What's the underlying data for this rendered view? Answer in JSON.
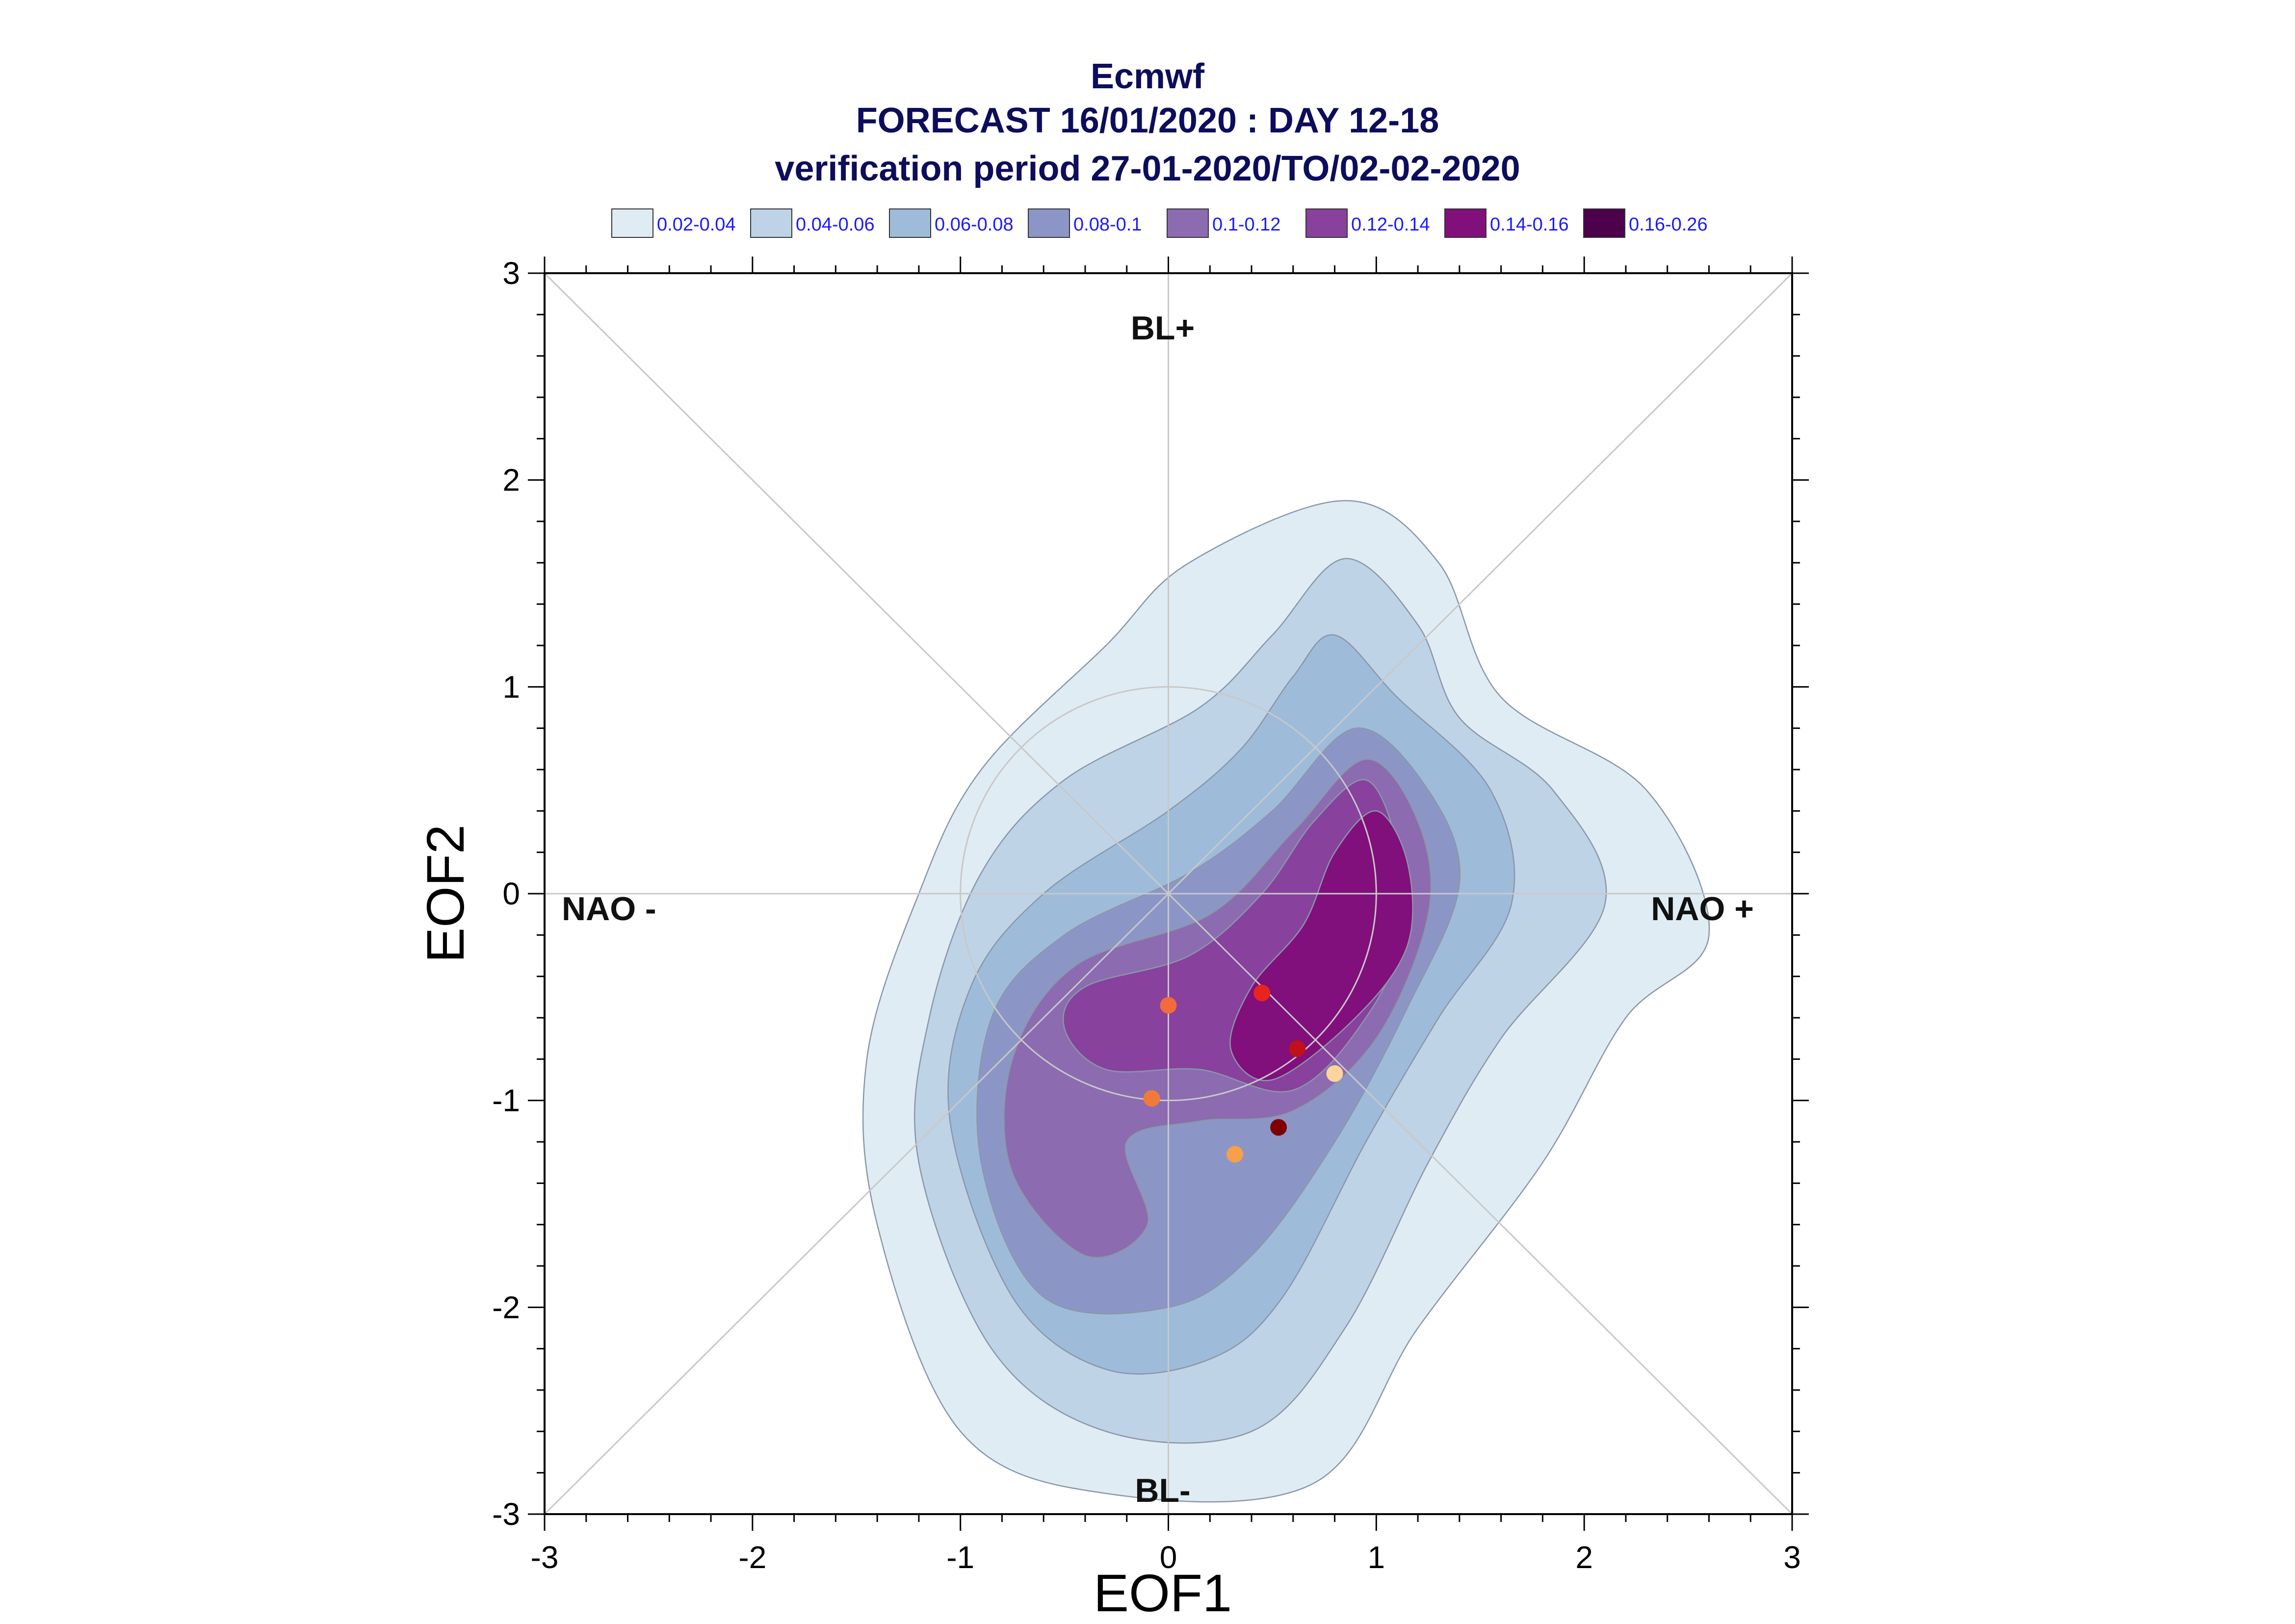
{
  "chart_data": {
    "type": "contour",
    "title_lines": [
      "Ecmwf",
      "FORECAST 16/01/2020 : DAY 12-18",
      "verification period 27-01-2020/TO/02-02-2020"
    ],
    "xlabel": "EOF1",
    "ylabel": "EOF2",
    "xlim": [
      -3,
      3
    ],
    "ylim": [
      -3,
      3
    ],
    "xticks": [
      -3,
      -2,
      -1,
      0,
      1,
      2,
      3
    ],
    "yticks": [
      -3,
      -2,
      -1,
      0,
      1,
      2,
      3
    ],
    "tick_labels": [
      "-3",
      "-2",
      "-1",
      "0",
      "1",
      "2",
      "3"
    ],
    "legend": [
      {
        "label": "0.02-0.04",
        "color": "#e0ecf4"
      },
      {
        "label": "0.04-0.06",
        "color": "#bfd3e6"
      },
      {
        "label": "0.06-0.08",
        "color": "#9ebcda"
      },
      {
        "label": "0.08-0.1",
        "color": "#8c96c6"
      },
      {
        "label": "0.1-0.12",
        "color": "#8c6bb1"
      },
      {
        "label": "0.12-0.14",
        "color": "#88419d"
      },
      {
        "label": "0.14-0.16",
        "color": "#810f7c"
      },
      {
        "label": "0.16-0.26",
        "color": "#4d004b"
      }
    ],
    "region_labels": {
      "top": "BL+",
      "bottom": "BL-",
      "left": "NAO -",
      "right": "NAO +"
    },
    "reference_circle_radius": 1,
    "contours": [
      {
        "level": "0.02-0.04",
        "color": "#e0ecf4",
        "points": [
          [
            0.85,
            1.9
          ],
          [
            1.3,
            1.6
          ],
          [
            1.6,
            0.95
          ],
          [
            2.3,
            0.5
          ],
          [
            2.6,
            -0.2
          ],
          [
            2.2,
            -0.6
          ],
          [
            1.8,
            -1.3
          ],
          [
            1.2,
            -2.1
          ],
          [
            0.7,
            -2.85
          ],
          [
            -0.3,
            -2.9
          ],
          [
            -1.0,
            -2.6
          ],
          [
            -1.4,
            -1.6
          ],
          [
            -1.45,
            -0.8
          ],
          [
            -1.2,
            0.0
          ],
          [
            -0.9,
            0.6
          ],
          [
            -0.3,
            1.2
          ],
          [
            0.1,
            1.6
          ]
        ]
      },
      {
        "level": "0.04-0.06",
        "color": "#bfd3e6",
        "points": [
          [
            0.85,
            1.62
          ],
          [
            1.2,
            1.3
          ],
          [
            1.4,
            0.85
          ],
          [
            1.85,
            0.5
          ],
          [
            2.1,
            -0.05
          ],
          [
            1.6,
            -0.7
          ],
          [
            1.25,
            -1.3
          ],
          [
            0.85,
            -2.1
          ],
          [
            0.4,
            -2.6
          ],
          [
            -0.3,
            -2.6
          ],
          [
            -0.85,
            -2.2
          ],
          [
            -1.2,
            -1.3
          ],
          [
            -1.15,
            -0.6
          ],
          [
            -0.9,
            0.1
          ],
          [
            -0.5,
            0.55
          ],
          [
            0.15,
            0.9
          ],
          [
            0.5,
            1.25
          ]
        ]
      },
      {
        "level": "0.06-0.08",
        "color": "#9ebcda",
        "points": [
          [
            0.8,
            1.25
          ],
          [
            1.1,
            0.95
          ],
          [
            1.55,
            0.5
          ],
          [
            1.65,
            -0.05
          ],
          [
            1.3,
            -0.6
          ],
          [
            0.95,
            -1.2
          ],
          [
            0.55,
            -1.95
          ],
          [
            0.2,
            -2.25
          ],
          [
            -0.3,
            -2.3
          ],
          [
            -0.75,
            -1.95
          ],
          [
            -1.05,
            -1.1
          ],
          [
            -0.95,
            -0.45
          ],
          [
            -0.6,
            0.0
          ],
          [
            0.0,
            0.4
          ],
          [
            0.35,
            0.7
          ],
          [
            0.6,
            1.05
          ]
        ]
      },
      {
        "level": "0.08-0.1",
        "color": "#8c96c6",
        "points": [
          [
            0.9,
            0.8
          ],
          [
            1.25,
            0.5
          ],
          [
            1.4,
            0.05
          ],
          [
            1.15,
            -0.55
          ],
          [
            0.8,
            -1.2
          ],
          [
            0.4,
            -1.75
          ],
          [
            0.0,
            -2.0
          ],
          [
            -0.6,
            -1.95
          ],
          [
            -0.9,
            -1.3
          ],
          [
            -0.85,
            -0.6
          ],
          [
            -0.5,
            -0.2
          ],
          [
            0.1,
            0.1
          ],
          [
            0.5,
            0.4
          ]
        ]
      },
      {
        "level": "0.1-0.12",
        "color": "#8c6bb1",
        "points": [
          [
            0.95,
            0.65
          ],
          [
            1.2,
            0.35
          ],
          [
            1.25,
            -0.1
          ],
          [
            1.0,
            -0.7
          ],
          [
            0.6,
            -1.05
          ],
          [
            0.15,
            -1.1
          ],
          [
            -0.2,
            -1.2
          ],
          [
            -0.1,
            -1.6
          ],
          [
            -0.4,
            -1.75
          ],
          [
            -0.75,
            -1.35
          ],
          [
            -0.75,
            -0.8
          ],
          [
            -0.45,
            -0.35
          ],
          [
            0.2,
            -0.1
          ],
          [
            0.6,
            0.3
          ]
        ]
      },
      {
        "level": "0.12-0.14",
        "color": "#88419d",
        "points": [
          [
            0.95,
            0.55
          ],
          [
            1.1,
            0.25
          ],
          [
            1.15,
            -0.15
          ],
          [
            0.95,
            -0.6
          ],
          [
            0.6,
            -0.95
          ],
          [
            0.15,
            -0.85
          ],
          [
            -0.3,
            -0.85
          ],
          [
            -0.5,
            -0.65
          ],
          [
            -0.4,
            -0.45
          ],
          [
            0.1,
            -0.3
          ],
          [
            0.45,
            0.0
          ],
          [
            0.7,
            0.35
          ]
        ]
      },
      {
        "level": "0.14-0.16",
        "color": "#810f7c",
        "points": [
          [
            1.0,
            0.4
          ],
          [
            1.15,
            0.15
          ],
          [
            1.15,
            -0.25
          ],
          [
            0.9,
            -0.6
          ],
          [
            0.5,
            -0.9
          ],
          [
            0.3,
            -0.75
          ],
          [
            0.4,
            -0.45
          ],
          [
            0.65,
            -0.15
          ],
          [
            0.8,
            0.2
          ]
        ]
      }
    ],
    "points": [
      {
        "x": 0.45,
        "y": -0.48,
        "color": "#e8241f"
      },
      {
        "x": 0.62,
        "y": -0.75,
        "color": "#c0101a"
      },
      {
        "x": 0.0,
        "y": -0.54,
        "color": "#f26b3a"
      },
      {
        "x": -0.08,
        "y": -0.99,
        "color": "#f07a3a"
      },
      {
        "x": 0.8,
        "y": -0.87,
        "color": "#fdd49e"
      },
      {
        "x": 0.32,
        "y": -1.26,
        "color": "#f6a04a"
      },
      {
        "x": 0.53,
        "y": -1.13,
        "color": "#7f0000"
      }
    ]
  }
}
